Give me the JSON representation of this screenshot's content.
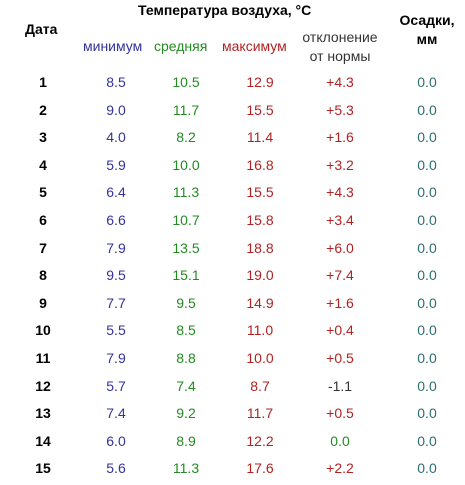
{
  "headers": {
    "date": "Дата",
    "temperature": "Температура воздуха, °C",
    "min": "минимум",
    "avg": "средняя",
    "max": "максимум",
    "deviation_line1": "отклонение",
    "deviation_line2": "от нормы",
    "precip_line1": "Осадки,",
    "precip_line2": "мм"
  },
  "rows": [
    {
      "date": "1",
      "min": "8.5",
      "avg": "10.5",
      "max": "12.9",
      "dev": "+4.3",
      "prec": "0.0"
    },
    {
      "date": "2",
      "min": "9.0",
      "avg": "11.7",
      "max": "15.5",
      "dev": "+5.3",
      "prec": "0.0"
    },
    {
      "date": "3",
      "min": "4.0",
      "avg": "8.2",
      "max": "11.4",
      "dev": "+1.6",
      "prec": "0.0"
    },
    {
      "date": "4",
      "min": "5.9",
      "avg": "10.0",
      "max": "16.8",
      "dev": "+3.2",
      "prec": "0.0"
    },
    {
      "date": "5",
      "min": "6.4",
      "avg": "11.3",
      "max": "15.5",
      "dev": "+4.3",
      "prec": "0.0"
    },
    {
      "date": "6",
      "min": "6.6",
      "avg": "10.7",
      "max": "15.8",
      "dev": "+3.4",
      "prec": "0.0"
    },
    {
      "date": "7",
      "min": "7.9",
      "avg": "13.5",
      "max": "18.8",
      "dev": "+6.0",
      "prec": "0.0"
    },
    {
      "date": "8",
      "min": "9.5",
      "avg": "15.1",
      "max": "19.0",
      "dev": "+7.4",
      "prec": "0.0"
    },
    {
      "date": "9",
      "min": "7.7",
      "avg": "9.5",
      "max": "14.9",
      "dev": "+1.6",
      "prec": "0.0"
    },
    {
      "date": "10",
      "min": "5.5",
      "avg": "8.5",
      "max": "11.0",
      "dev": "+0.4",
      "prec": "0.0"
    },
    {
      "date": "11",
      "min": "7.9",
      "avg": "8.8",
      "max": "10.0",
      "dev": "+0.5",
      "prec": "0.0"
    },
    {
      "date": "12",
      "min": "5.7",
      "avg": "7.4",
      "max": "8.7",
      "dev": "-1.1",
      "prec": "0.0"
    },
    {
      "date": "13",
      "min": "7.4",
      "avg": "9.2",
      "max": "11.7",
      "dev": "+0.5",
      "prec": "0.0"
    },
    {
      "date": "14",
      "min": "6.0",
      "avg": "8.9",
      "max": "12.2",
      "dev": "0.0",
      "prec": "0.0"
    },
    {
      "date": "15",
      "min": "5.6",
      "avg": "11.3",
      "max": "17.6",
      "dev": "+2.2",
      "prec": "0.0"
    }
  ]
}
